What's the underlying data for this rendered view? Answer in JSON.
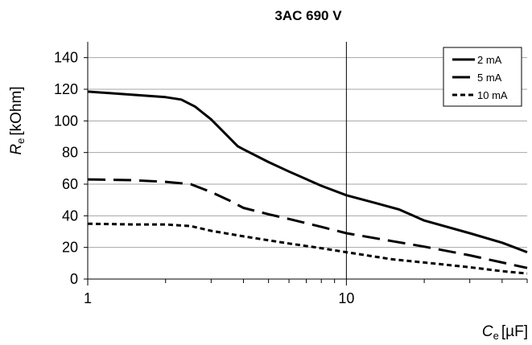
{
  "chart_data": {
    "type": "line",
    "title": "3AC 690 V",
    "xlabel": {
      "symbol": "C",
      "sub": "e",
      "unit": "[µF]"
    },
    "ylabel": {
      "symbol": "R",
      "sub": "e",
      "unit": "[kOhm]"
    },
    "x_scale": "log",
    "xlim": [
      1,
      50
    ],
    "ylim": [
      0,
      150
    ],
    "x_ticks": [
      1,
      10
    ],
    "x_tick_labels": [
      "1",
      "10"
    ],
    "y_ticks": [
      0,
      20,
      40,
      60,
      80,
      100,
      120,
      140
    ],
    "y_tick_labels": [
      "0",
      "20",
      "40",
      "60",
      "80",
      "100",
      "120",
      "140"
    ],
    "grid": "horizontal",
    "legend_position": "top-right",
    "series": [
      {
        "name": "2 mA",
        "style": "solid",
        "x": [
          1,
          1.5,
          2,
          2.3,
          2.6,
          3,
          3.4,
          3.8,
          4,
          5,
          6,
          8,
          10,
          13,
          16,
          20,
          30,
          40,
          50
        ],
        "y": [
          118.5,
          116.5,
          115,
          113.5,
          109,
          101,
          92,
          84,
          82,
          74,
          68,
          59,
          53,
          48,
          44,
          37,
          29,
          23,
          17
        ]
      },
      {
        "name": "5 mA",
        "style": "long-dash",
        "x": [
          1,
          1.5,
          2,
          2.5,
          3,
          3.5,
          4,
          5,
          6,
          8,
          10,
          15,
          20,
          30,
          40,
          50
        ],
        "y": [
          63,
          62.5,
          61.5,
          60,
          55,
          50,
          45,
          41,
          38,
          33,
          29,
          24,
          20.5,
          15,
          10.5,
          7
        ]
      },
      {
        "name": "10 mA",
        "style": "short-dash",
        "x": [
          1,
          1.5,
          2,
          2.5,
          3,
          4,
          5,
          6,
          8,
          10,
          15,
          20,
          30,
          40,
          50
        ],
        "y": [
          35,
          34.5,
          34.5,
          33.5,
          30.5,
          27,
          24.5,
          22.5,
          19.5,
          17,
          12.5,
          10.5,
          7.5,
          5,
          3.5
        ]
      }
    ]
  }
}
